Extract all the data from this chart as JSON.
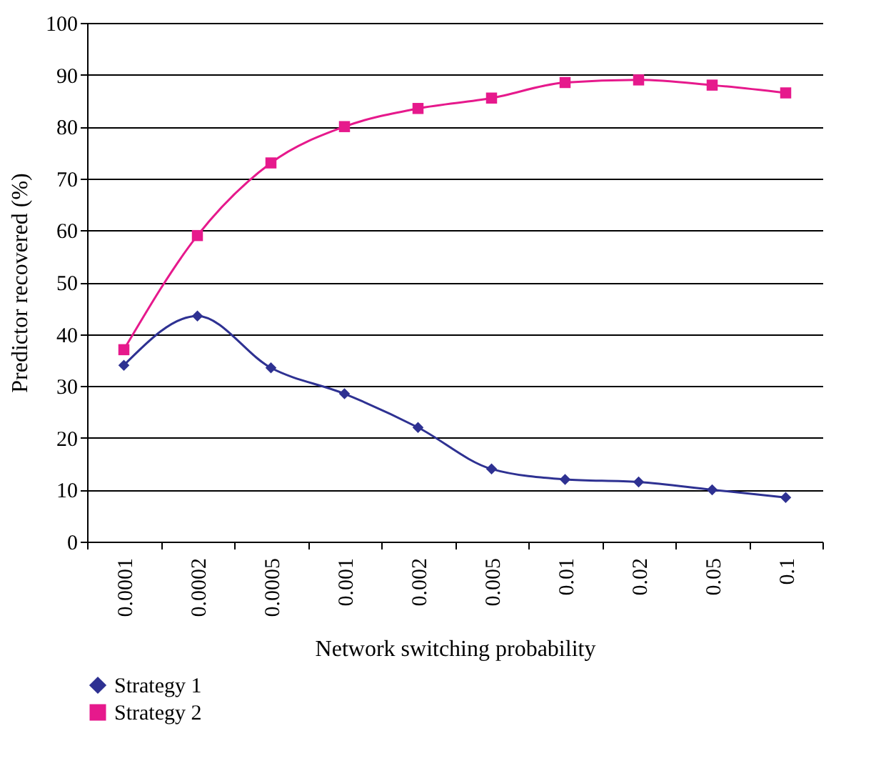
{
  "chart_data": {
    "type": "line",
    "xlabel": "Network switching probability",
    "ylabel": "Predictor recovered (%)",
    "categories": [
      "0.0001",
      "0.0002",
      "0.0005",
      "0.001",
      "0.002",
      "0.005",
      "0.01",
      "0.02",
      "0.05",
      "0.1"
    ],
    "series": [
      {
        "name": "Strategy 1",
        "color": "#2e3192",
        "marker": "diamond",
        "values": [
          34,
          43.5,
          33.5,
          28.5,
          22,
          14,
          12,
          11.5,
          10,
          8.5
        ]
      },
      {
        "name": "Strategy 2",
        "color": "#e6198c",
        "marker": "square",
        "values": [
          37,
          59,
          73,
          80,
          83.5,
          85.5,
          88.5,
          89,
          88,
          86.5
        ]
      }
    ],
    "ylim": [
      0,
      100
    ],
    "yticks": [
      0,
      10,
      20,
      30,
      40,
      50,
      60,
      70,
      80,
      90,
      100
    ],
    "grid": "y",
    "legend": "bottom left"
  }
}
